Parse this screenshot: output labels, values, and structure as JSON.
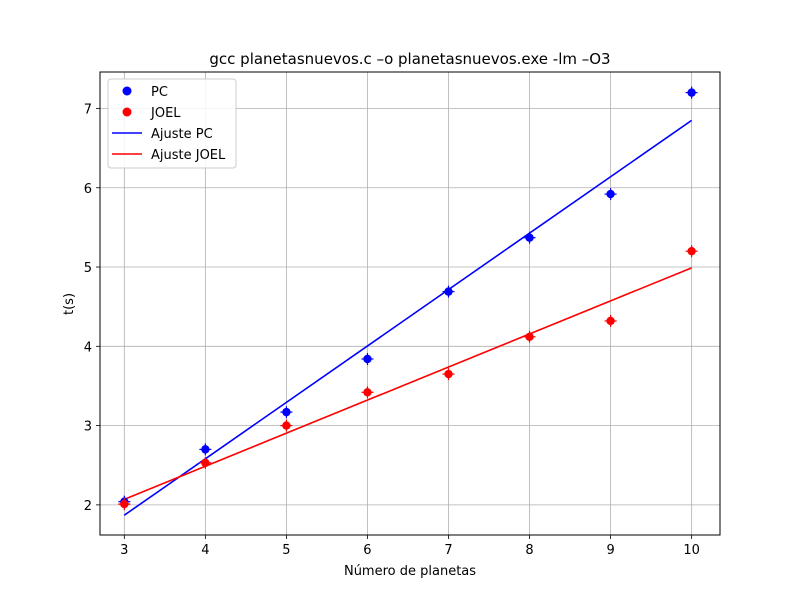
{
  "chart_data": {
    "type": "scatter",
    "title": "gcc planetasnuevos.c –o planetasnuevos.exe -lm –O3",
    "xlabel": "Número de planetas",
    "ylabel": "t(s)",
    "xlim": [
      2.7,
      10.35
    ],
    "ylim": [
      1.62,
      7.46
    ],
    "x_ticks": [
      3,
      4,
      5,
      6,
      7,
      8,
      9,
      10
    ],
    "y_ticks": [
      2,
      3,
      4,
      5,
      6,
      7
    ],
    "grid": true,
    "legend_position": "upper left",
    "series": [
      {
        "name": "PC",
        "kind": "scatter",
        "color": "#0000ff",
        "x": [
          3,
          4,
          5,
          6,
          7,
          8,
          9,
          10
        ],
        "y": [
          2.04,
          2.7,
          3.17,
          3.84,
          4.69,
          5.37,
          5.92,
          7.2
        ]
      },
      {
        "name": "JOEL",
        "kind": "scatter",
        "color": "#ff0000",
        "x": [
          3,
          4,
          5,
          6,
          7,
          8,
          9,
          10
        ],
        "y": [
          2.01,
          2.53,
          3.0,
          3.42,
          3.65,
          4.12,
          4.32,
          5.2
        ]
      },
      {
        "name": "Ajuste PC",
        "kind": "line",
        "color": "#0000ff",
        "x": [
          3,
          10
        ],
        "y": [
          1.87,
          6.85
        ]
      },
      {
        "name": "Ajuste JOEL",
        "kind": "line",
        "color": "#ff0000",
        "x": [
          3,
          10
        ],
        "y": [
          2.07,
          4.99
        ]
      }
    ]
  }
}
